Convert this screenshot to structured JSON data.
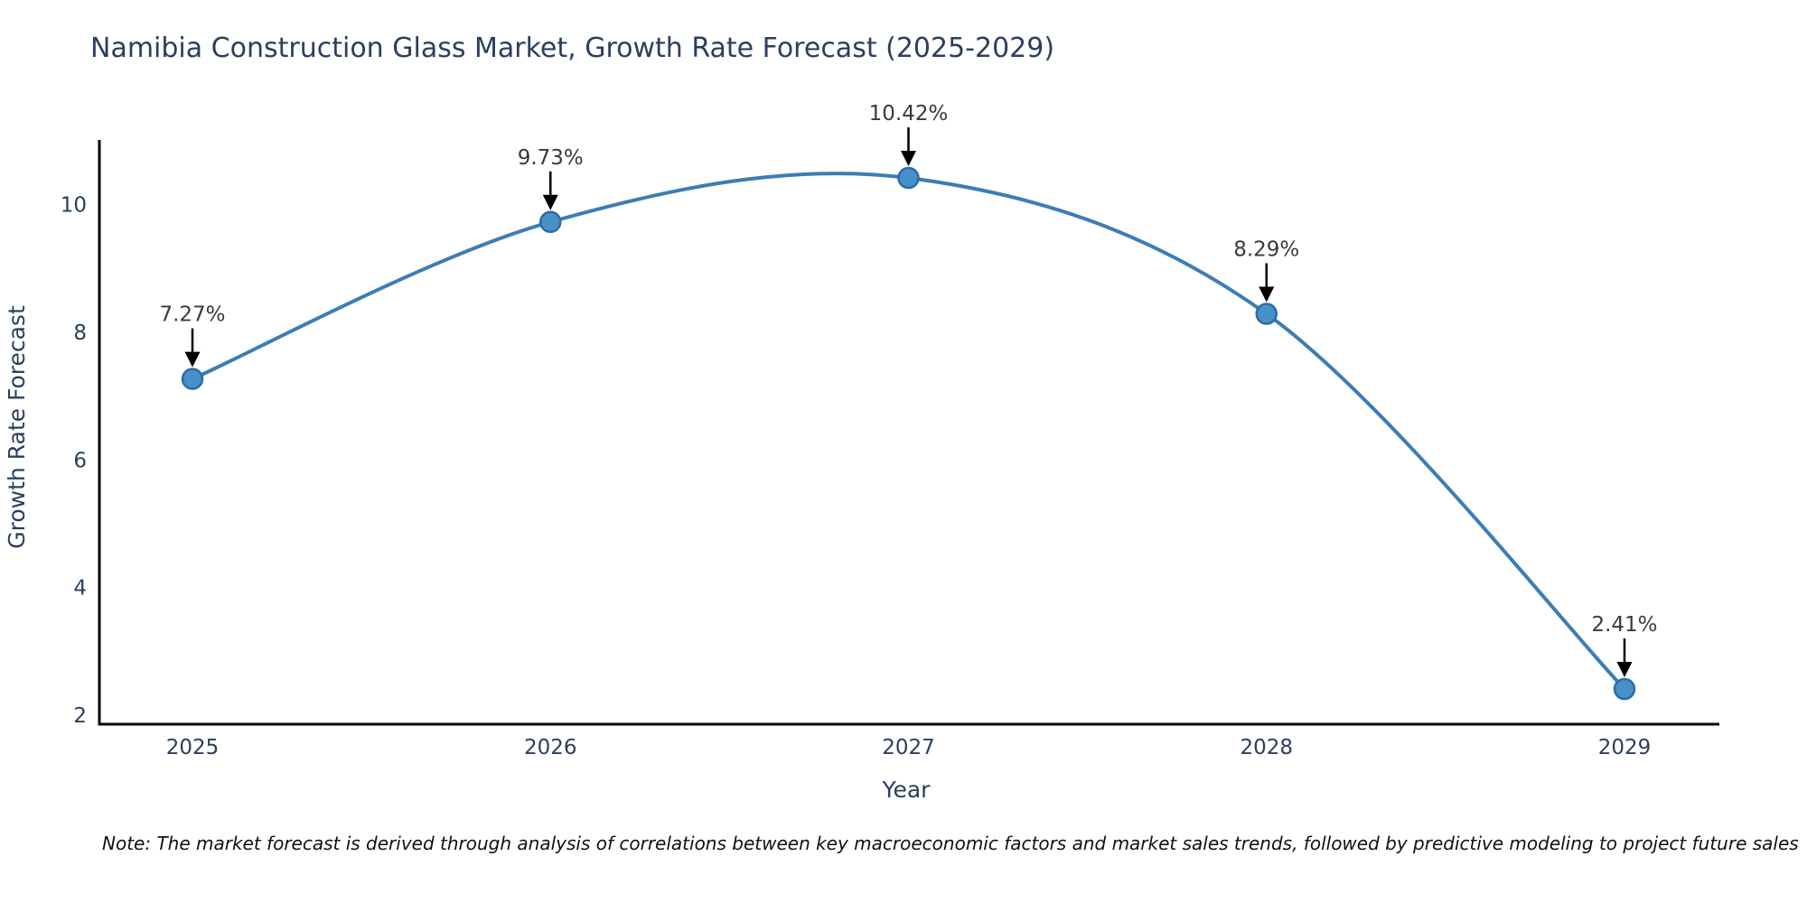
{
  "title": "Namibia Construction Glass Market, Growth Rate Forecast (2025-2029)",
  "note": "Note: The market forecast is derived through analysis of correlations between key macroeconomic factors and market sales trends, followed by predictive modeling to project future sales",
  "chart_data": {
    "type": "line",
    "title": "Namibia Construction Glass Market, Growth Rate Forecast (2025-2029)",
    "xlabel": "Year",
    "ylabel": "Growth Rate Forecast",
    "x": [
      2025,
      2026,
      2027,
      2028,
      2029
    ],
    "values": [
      7.27,
      9.73,
      10.42,
      8.29,
      2.41
    ],
    "point_labels": [
      "7.27%",
      "9.73%",
      "10.42%",
      "8.29%",
      "2.41%"
    ],
    "x_tick_labels": [
      "2025",
      "2026",
      "2027",
      "2028",
      "2029"
    ],
    "y_ticks": [
      2,
      4,
      6,
      8,
      10
    ],
    "ylim": [
      1.9,
      11.05
    ],
    "xlim": [
      2024.74,
      2029.27
    ],
    "grid": false,
    "legend": "none",
    "line_shape": "spline",
    "markers": true,
    "annotations_with_arrows": true,
    "colors": {
      "line": "#3c7db5",
      "marker_fill": "#4791c8",
      "marker_edge": "#2b6ca8",
      "axis": "#000000",
      "tick_text": "#2a3f5f",
      "axis_title_text": "#2a3f5f",
      "annotation_text": "#3a3a3a",
      "arrow": "#000000",
      "background": "#ffffff"
    }
  }
}
